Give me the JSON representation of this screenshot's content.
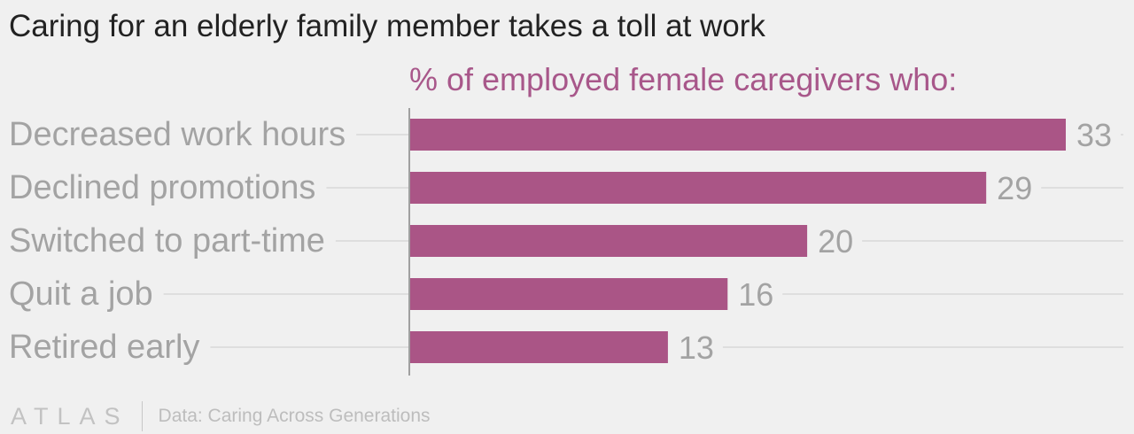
{
  "chart_data": {
    "type": "bar",
    "orientation": "horizontal",
    "title": "Caring for an elderly family member takes a toll at work",
    "subtitle": "% of employed female caregivers who:",
    "categories": [
      "Decreased work hours",
      "Declined promotions",
      "Switched to part-time",
      "Quit a job",
      "Retired early"
    ],
    "values": [
      33,
      29,
      20,
      16,
      13
    ],
    "xlim": [
      0,
      33
    ],
    "grid": true,
    "legend": "none",
    "bar_color": "#aa5586",
    "subtitle_color": "#a8578a"
  },
  "footer": {
    "logo": "ATLAS",
    "source": "Data: Caring Across Generations"
  }
}
